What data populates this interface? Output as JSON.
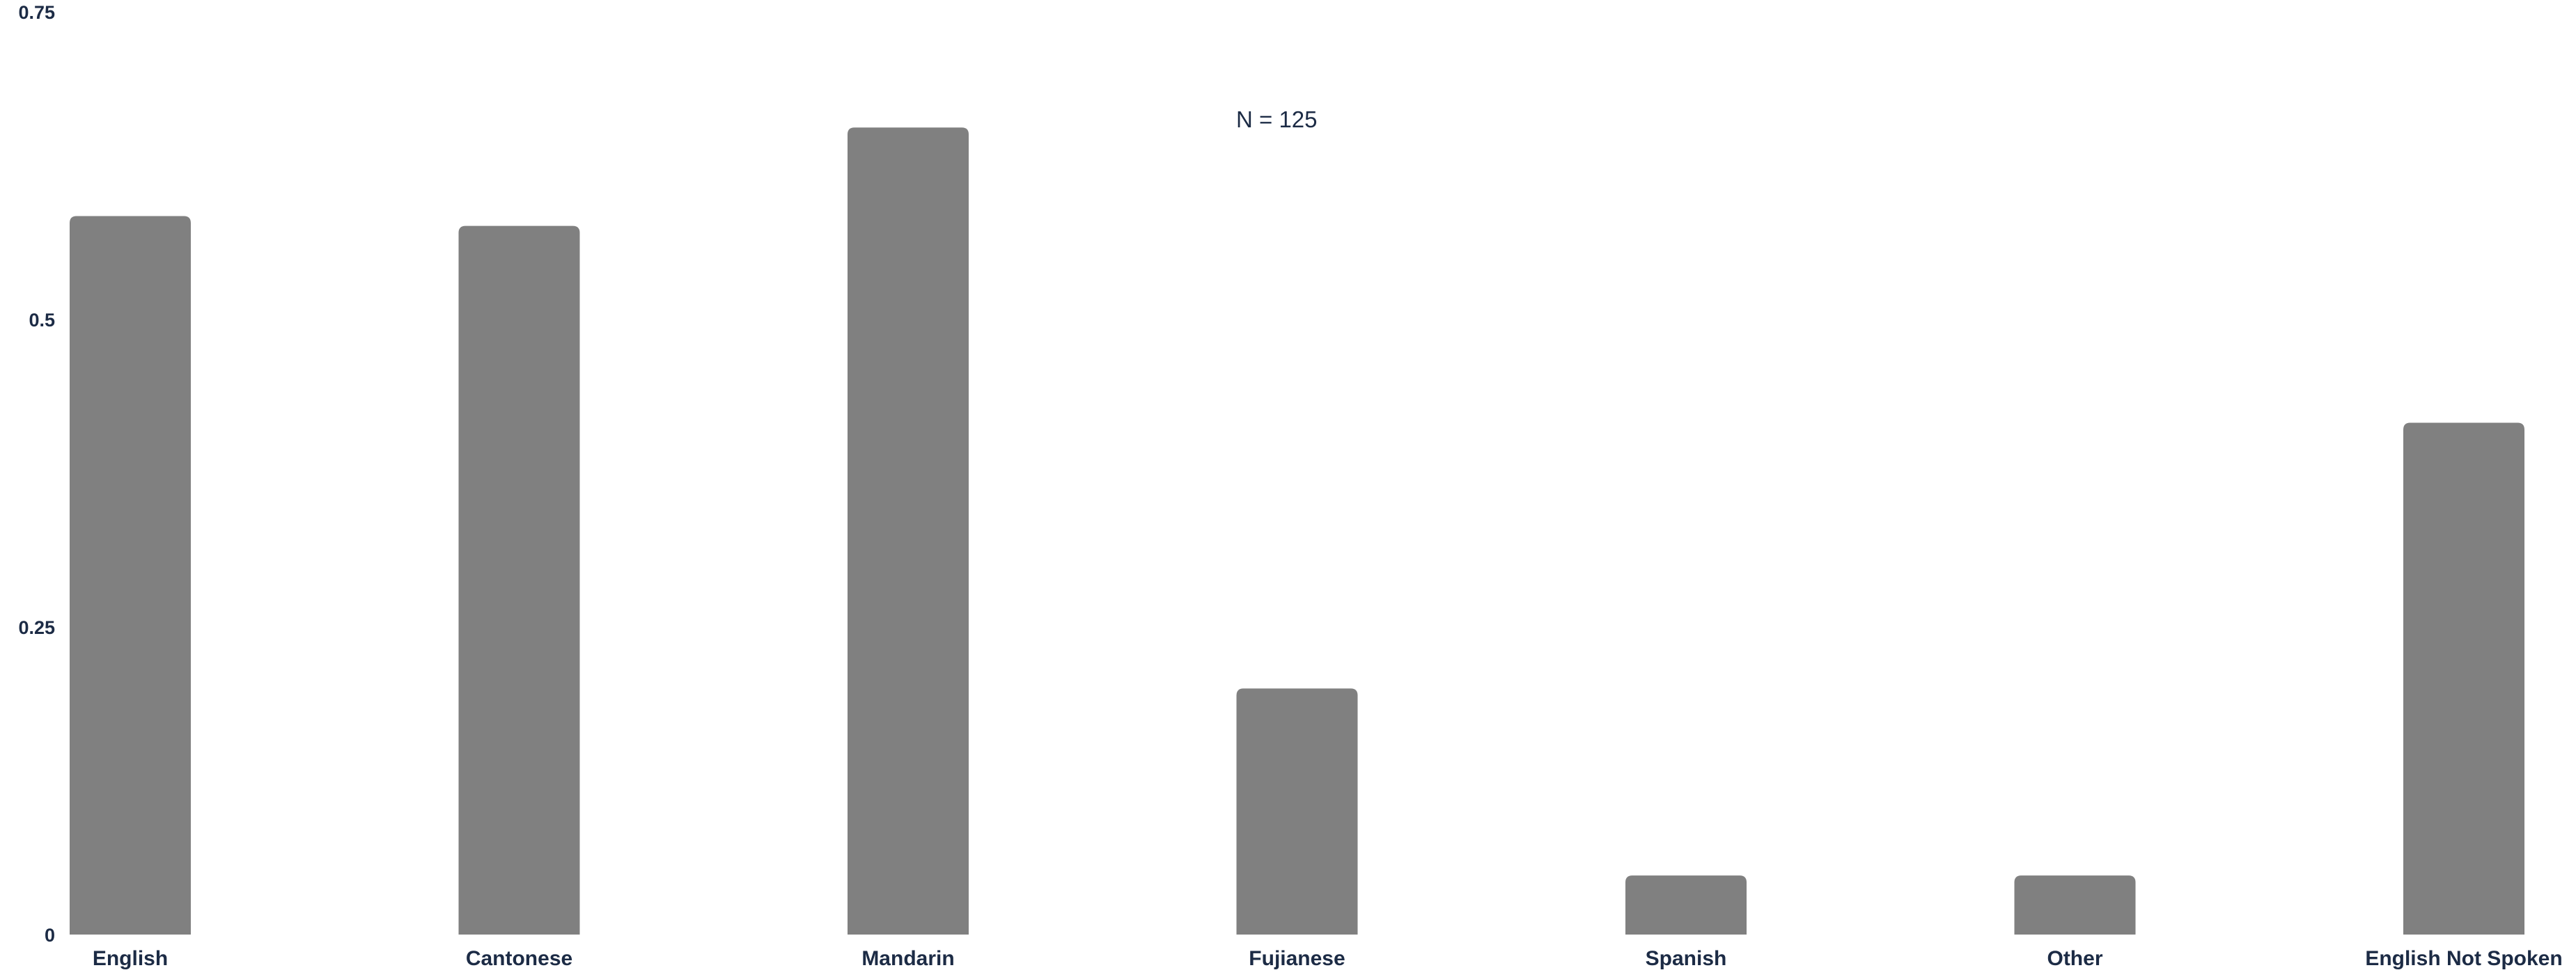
{
  "chart_data": {
    "type": "bar",
    "title": "",
    "xlabel": "",
    "ylabel": "",
    "annotation": "N = 125",
    "categories": [
      "English",
      "Cantonese",
      "Mandarin",
      "Fujianese",
      "Spanish",
      "Other",
      "English Not Spoken"
    ],
    "values": [
      0.584,
      0.576,
      0.656,
      0.2,
      0.048,
      0.048,
      0.416
    ],
    "ylim": [
      0,
      0.75
    ],
    "yticks": [
      0,
      0.25,
      0.5,
      0.75
    ],
    "ytick_labels": [
      "0",
      "0.25",
      "0.5",
      "0.75"
    ],
    "grid": false,
    "legend": "none",
    "colors": {
      "bar": "#808080",
      "text": "#1c2b45"
    }
  }
}
